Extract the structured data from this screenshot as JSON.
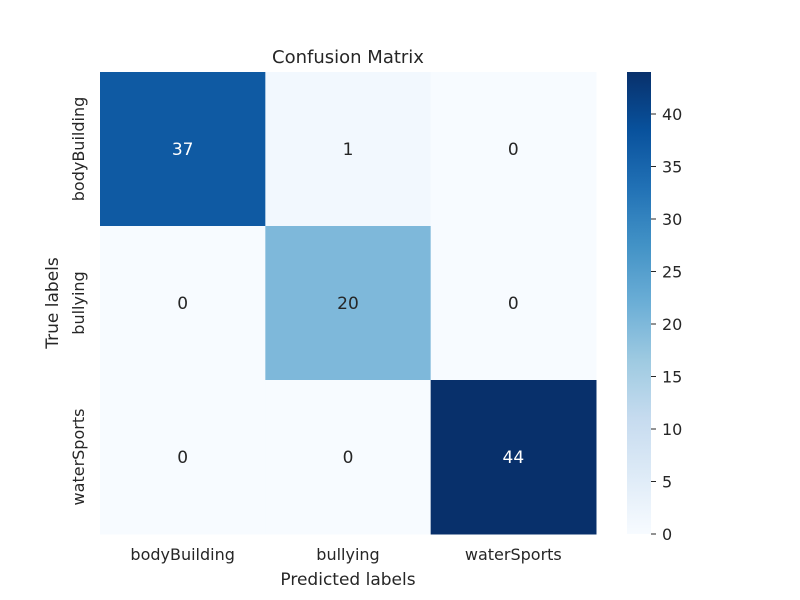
{
  "chart_data": {
    "type": "heatmap",
    "title": "Confusion Matrix",
    "xlabel": "Predicted labels",
    "ylabel": "True labels",
    "x_categories": [
      "bodyBuilding",
      "bullying",
      "waterSports"
    ],
    "y_categories": [
      "bodyBuilding",
      "bullying",
      "waterSports"
    ],
    "values": [
      [
        37,
        1,
        0
      ],
      [
        0,
        20,
        0
      ],
      [
        0,
        0,
        44
      ]
    ],
    "colormap": "Blues",
    "color_range": [
      0,
      44
    ],
    "colorbar_ticks": [
      0,
      5,
      10,
      15,
      20,
      25,
      30,
      35,
      40
    ],
    "annotations": true,
    "grid": false
  }
}
